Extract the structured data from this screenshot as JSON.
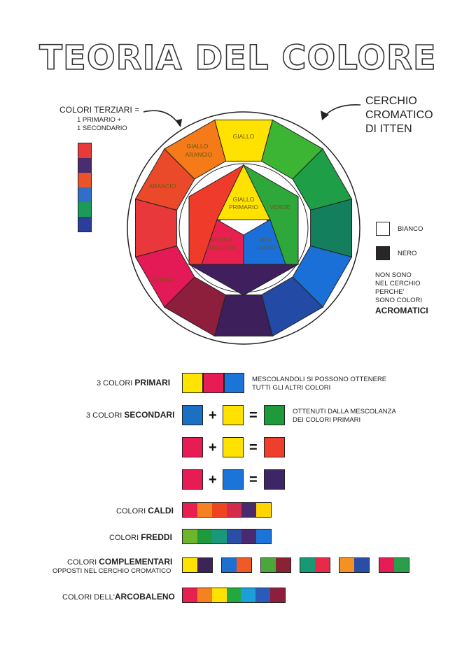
{
  "title": "TEORIA DEL COLORE",
  "terziari": {
    "title": "COLORI TERZIARI =",
    "line1": "1 PRIMARIO +",
    "line2": "1 SECONDARIO",
    "colors": [
      "#e83a3a",
      "#4a2d6e",
      "#e8532a",
      "#2f6fc7",
      "#1d9a5a",
      "#2b3f9a"
    ]
  },
  "cerchio": {
    "line1": "CERCHIO",
    "line2": "CROMATICO",
    "line3": "DI ITTEN"
  },
  "wheel": {
    "outer": [
      "#ffe200",
      "#3cb534",
      "#1e9e46",
      "#137f5d",
      "#1a70d6",
      "#234aa5",
      "#3d1f5c",
      "#8e1f3c",
      "#e41a56",
      "#e8383c",
      "#ea4a2a",
      "#f57a18"
    ],
    "labels": {
      "giallo": "GIALLO",
      "giallo_arancio_1": "GIALLO",
      "giallo_arancio_2": "ARANCIO",
      "arancio": "ARANCIO",
      "rosso": "ROSSO",
      "verde": "VERDE"
    },
    "inner": {
      "yellow": "#ffe200",
      "magenta": "#e8204f",
      "cyan": "#1b6fd8",
      "orange": "#ef3b2a",
      "green": "#2ea83a",
      "violet": "#3f1f5e"
    },
    "inner_labels": {
      "giallo_1": "GIALLO",
      "giallo_2": "PRIMARIO",
      "rosso_1": "ROSSO",
      "rosso_2": "MAGENTA",
      "blu_1": "BLU",
      "blu_2": "CIANO",
      "verde": "VERDE"
    }
  },
  "acromatici": {
    "bianco": "BIANCO",
    "nero": "NERO",
    "bianco_color": "#ffffff",
    "nero_color": "#2a2628",
    "note1": "NON SONO",
    "note2": "NEL CERCHIO",
    "note3": "PERCHE'",
    "note4": "SONO COLORI",
    "bold": "ACROMATICI"
  },
  "primari": {
    "pre": "3 COLORI ",
    "bold": "PRIMARI",
    "colors": [
      "#ffe400",
      "#e81c55",
      "#1b74d8"
    ],
    "note1": "MESCOLANDOLI SI POSSONO OTTENERE",
    "note2": "TUTTI GLI ALTRI COLORI"
  },
  "secondari": {
    "pre": "3 COLORI ",
    "bold": "SECONDARI",
    "note1": "OTTENUTI DALLA MESCOLANZA",
    "note2": "DEI COLORI PRIMARI",
    "rows": [
      {
        "a": "#1a70c2",
        "b": "#ffe200",
        "c": "#1f9a3a"
      },
      {
        "a": "#e81c55",
        "b": "#ffe200",
        "c": "#ee3f2c"
      },
      {
        "a": "#e81c55",
        "b": "#1b74d8",
        "c": "#3e2566"
      }
    ],
    "plus": "+",
    "equals": "="
  },
  "caldi": {
    "pre": "COLORI ",
    "bold": "CALDI",
    "colors": [
      "#e8204f",
      "#f58220",
      "#ee4420",
      "#d42b4c",
      "#4a2a6e",
      "#ffd500"
    ]
  },
  "freddi": {
    "pre": "COLORI ",
    "bold": "FREDDI",
    "colors": [
      "#6cb52c",
      "#1f9a3a",
      "#17997a",
      "#2a4ea3",
      "#4a2a6e",
      "#1b74d8"
    ]
  },
  "complementari": {
    "pre": "COLORI ",
    "bold": "COMPLEMENTARI",
    "line2": "OPPOSTI NEL CERCHIO CROMATICO",
    "pairs": [
      [
        "#ffe200",
        "#3c2358"
      ],
      [
        "#1d6fd0",
        "#ef5a26"
      ],
      [
        "#4aa83a",
        "#8a2236"
      ],
      [
        "#179a74",
        "#e82a4a"
      ],
      [
        "#f59122",
        "#2a4ea6"
      ],
      [
        "#e81c55",
        "#2a9e4a"
      ]
    ]
  },
  "arcobaleno": {
    "pre": "COLORI DELL'",
    "bold": "ARCOBALENO",
    "colors": [
      "#e8204f",
      "#f58220",
      "#ffe200",
      "#23a840",
      "#1b9fd8",
      "#2a5bb8",
      "#8e1f3c"
    ]
  }
}
